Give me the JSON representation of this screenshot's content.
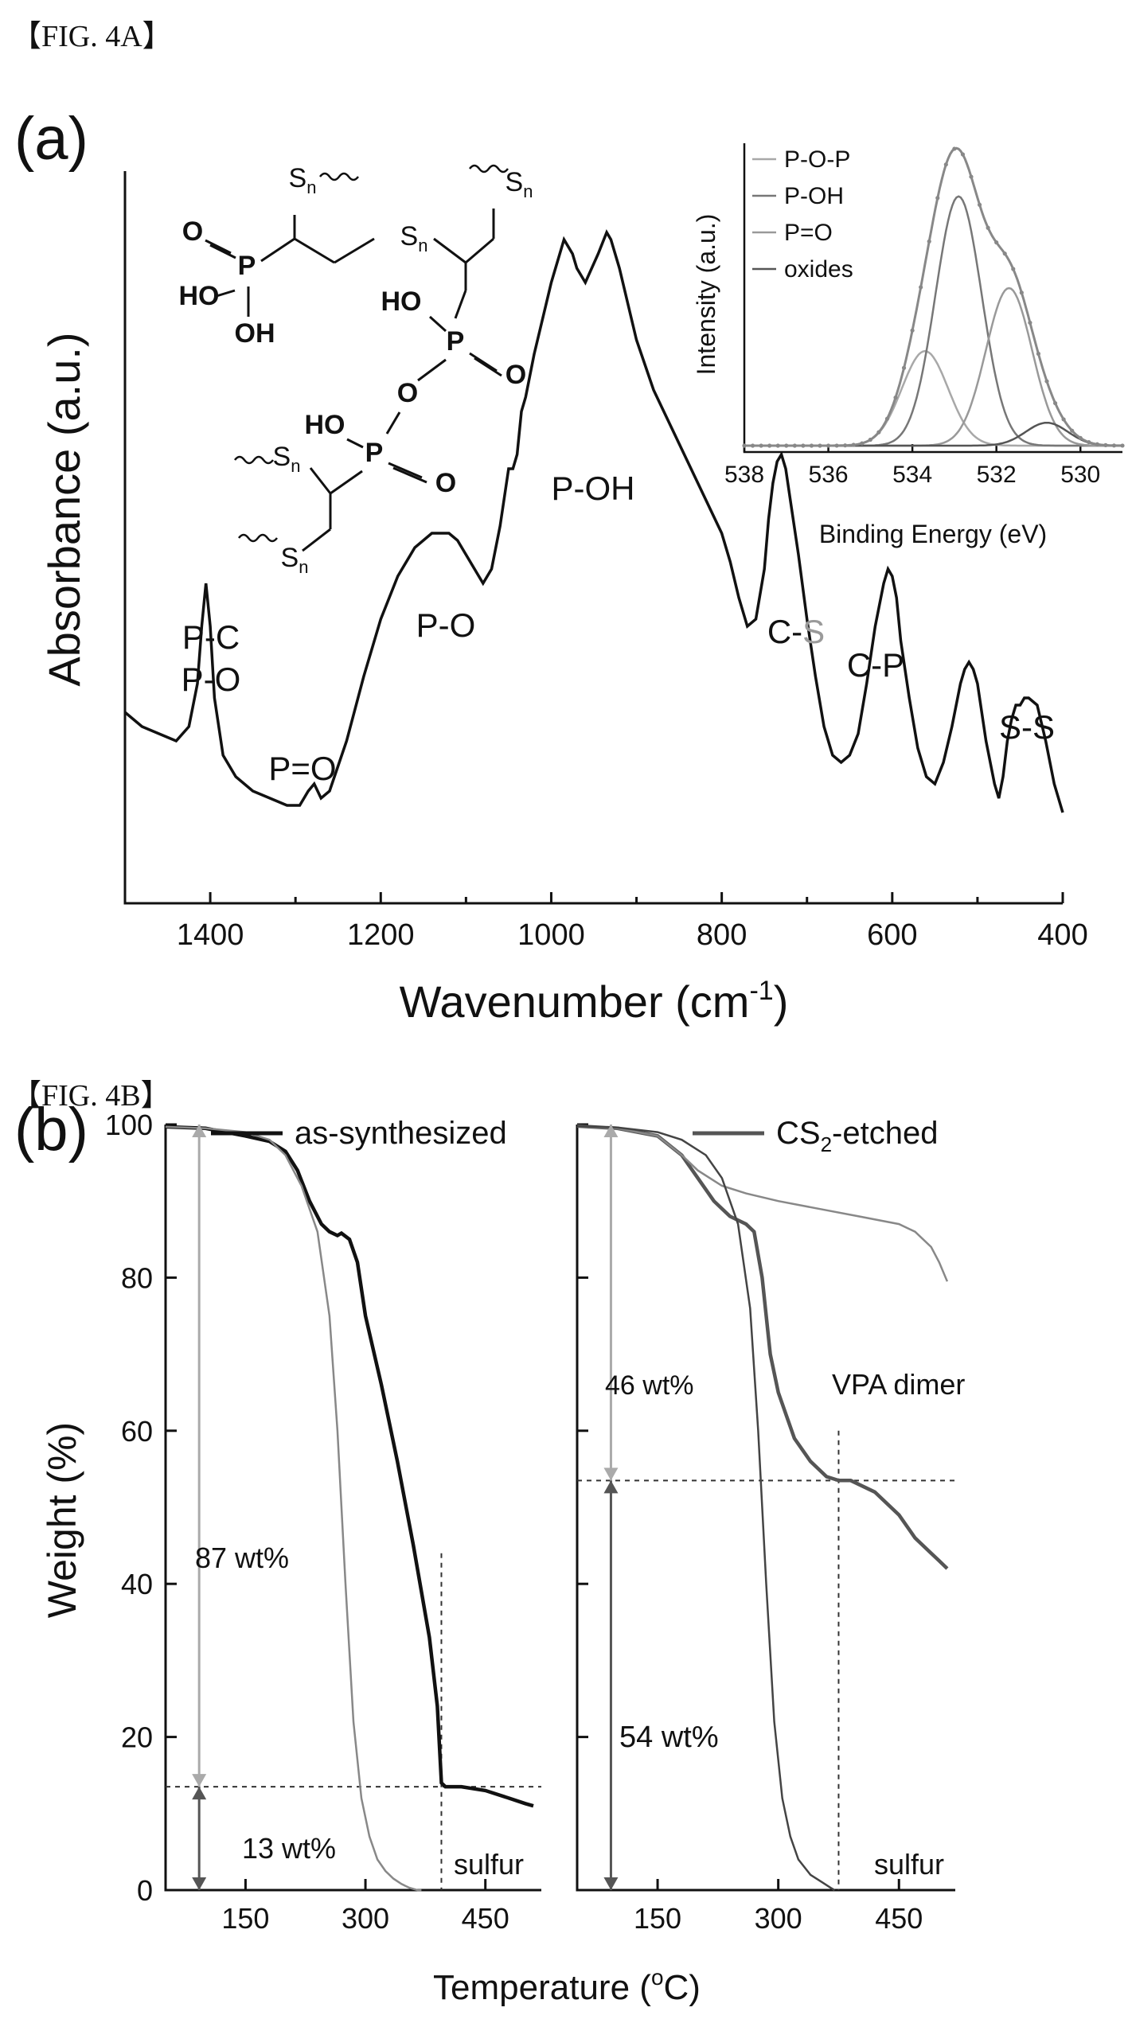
{
  "figures": {
    "a_caption": "【FIG. 4A】",
    "b_caption": "【FIG. 4B】"
  },
  "chart_data": [
    {
      "type": "line",
      "panel": "(a)",
      "xlabel": "Wavenumber (cm",
      "xlabel_sup": "-1",
      "xlabel_end": ")",
      "ylabel": "Absorbance (a.u.)",
      "xlim": [
        1500,
        400
      ],
      "x_reversed": true,
      "xticks": [
        1400,
        1200,
        1000,
        800,
        600,
        400
      ],
      "yticks": [],
      "grid": false,
      "annotations": [
        {
          "text": "P-C",
          "x": 1405
        },
        {
          "text": "P-O",
          "x": 1405
        },
        {
          "text": "P=O",
          "x": 1290
        },
        {
          "text": "P-O",
          "x": 1120
        },
        {
          "text": "P-OH",
          "x": 955
        },
        {
          "text": "C-",
          "text2": "S",
          "x": 740
        },
        {
          "text": "C-P",
          "x": 600
        },
        {
          "text": "S-S",
          "x": 465
        }
      ],
      "series": [
        {
          "x": [
            1500,
            1480,
            1460,
            1440,
            1425,
            1415,
            1410,
            1405,
            1400,
            1395,
            1385,
            1370,
            1350,
            1330,
            1310,
            1295,
            1285,
            1278,
            1270,
            1260,
            1240,
            1220,
            1200,
            1180,
            1160,
            1140,
            1120,
            1110,
            1100,
            1090,
            1080,
            1070,
            1060,
            1050,
            1045,
            1040,
            1035,
            1030,
            1020,
            1000,
            985,
            975,
            970,
            960,
            945,
            935,
            930,
            920,
            900,
            880,
            860,
            840,
            820,
            800,
            790,
            780,
            770,
            760,
            750,
            745,
            740,
            735,
            730,
            725,
            720,
            710,
            700,
            690,
            680,
            670,
            660,
            650,
            640,
            630,
            620,
            610,
            605,
            600,
            595,
            590,
            580,
            570,
            560,
            550,
            540,
            530,
            520,
            515,
            510,
            505,
            500,
            490,
            480,
            475,
            470,
            465,
            460,
            455,
            450,
            445,
            440,
            430,
            420,
            410,
            400
          ],
          "y": [
            0.2,
            0.18,
            0.17,
            0.16,
            0.18,
            0.24,
            0.32,
            0.38,
            0.32,
            0.22,
            0.14,
            0.11,
            0.09,
            0.08,
            0.07,
            0.07,
            0.09,
            0.1,
            0.08,
            0.09,
            0.16,
            0.25,
            0.33,
            0.39,
            0.43,
            0.45,
            0.45,
            0.44,
            0.42,
            0.4,
            0.38,
            0.4,
            0.46,
            0.54,
            0.54,
            0.56,
            0.62,
            0.64,
            0.7,
            0.8,
            0.86,
            0.84,
            0.82,
            0.8,
            0.84,
            0.87,
            0.86,
            0.82,
            0.72,
            0.65,
            0.6,
            0.55,
            0.5,
            0.45,
            0.41,
            0.36,
            0.32,
            0.33,
            0.4,
            0.47,
            0.52,
            0.55,
            0.56,
            0.54,
            0.5,
            0.42,
            0.33,
            0.25,
            0.18,
            0.14,
            0.13,
            0.14,
            0.17,
            0.24,
            0.32,
            0.38,
            0.4,
            0.39,
            0.36,
            0.3,
            0.22,
            0.15,
            0.11,
            0.1,
            0.13,
            0.18,
            0.24,
            0.26,
            0.27,
            0.26,
            0.24,
            0.16,
            0.1,
            0.08,
            0.11,
            0.16,
            0.19,
            0.21,
            0.21,
            0.22,
            0.22,
            0.21,
            0.16,
            0.1,
            0.06
          ]
        }
      ],
      "inset": {
        "type": "line",
        "xlabel": "Binding Energy (eV)",
        "ylabel": "Intensity (a.u.)",
        "xlim": [
          538,
          529
        ],
        "xticks": [
          538,
          536,
          534,
          532,
          530
        ],
        "legend": [
          "P-O-P",
          "P-OH",
          "P=O",
          "oxides"
        ],
        "components": [
          {
            "name": "P-O-P",
            "center": 533.7,
            "height": 0.33,
            "width": 0.55
          },
          {
            "name": "P-OH",
            "center": 532.9,
            "height": 0.87,
            "width": 0.55
          },
          {
            "name": "P=O",
            "center": 531.7,
            "height": 0.55,
            "width": 0.55
          },
          {
            "name": "oxides",
            "center": 530.8,
            "height": 0.08,
            "width": 0.5
          }
        ]
      },
      "structure_labels": {
        "s": "S",
        "n": "n",
        "o": "O",
        "p": "P",
        "ho": "HO",
        "oh": "OH"
      }
    },
    {
      "type": "line",
      "panel": "(b)",
      "xlabel": "Temperature (",
      "xlabel_sup": "o",
      "xlabel_end": "C)",
      "ylabel": "Weight (%)",
      "ylim": [
        0,
        100
      ],
      "yticks": [
        0,
        20,
        40,
        60,
        80,
        100
      ],
      "subplots": [
        {
          "legend": "as-synthesized",
          "xlim": [
            50,
            520
          ],
          "xticks": [
            150,
            300,
            450
          ],
          "annotations": [
            {
              "text": "87 wt%",
              "color": "#aaaaaa"
            },
            {
              "text": "13 wt%",
              "color": "#555555"
            },
            {
              "text": "sulfur"
            }
          ],
          "hline": 13.5,
          "vline": 395,
          "series": [
            {
              "name": "as-synthesized",
              "x": [
                50,
                100,
                150,
                180,
                200,
                215,
                230,
                245,
                255,
                265,
                270,
                280,
                290,
                300,
                320,
                340,
                360,
                380,
                390,
                395,
                400,
                420,
                450,
                480,
                500,
                510
              ],
              "y": [
                99.7,
                99.5,
                98.5,
                97.8,
                96.5,
                94,
                90,
                87,
                86,
                85.5,
                85.8,
                85,
                82,
                75,
                66,
                56,
                45,
                33,
                24,
                14,
                13.5,
                13.5,
                13,
                12,
                11.3,
                11
              ]
            },
            {
              "name": "sulfur",
              "x": [
                50,
                100,
                150,
                180,
                200,
                220,
                240,
                255,
                265,
                275,
                285,
                295,
                305,
                315,
                325,
                335,
                345,
                355,
                365,
                370
              ],
              "y": [
                99.7,
                99.5,
                99,
                98,
                96,
                92,
                86,
                75,
                60,
                40,
                22,
                12,
                7,
                4,
                2.5,
                1.5,
                0.8,
                0.3,
                0,
                0
              ]
            }
          ]
        },
        {
          "legend": "CS",
          "legend_sub": "2",
          "legend_end": "-etched",
          "xlim": [
            50,
            520
          ],
          "xticks": [
            150,
            300,
            450
          ],
          "annotations": [
            {
              "text": "46 wt%",
              "color": "#aaaaaa"
            },
            {
              "text": "VPA dimer",
              "color": "#555555"
            },
            {
              "text": "54 wt%",
              "color": "#555555"
            },
            {
              "text": "sulfur"
            }
          ],
          "hline": 53.5,
          "vline": 375,
          "series": [
            {
              "name": "CS2-etched",
              "x": [
                50,
                100,
                150,
                180,
                200,
                220,
                240,
                260,
                270,
                280,
                290,
                300,
                310,
                320,
                340,
                360,
                375,
                390,
                420,
                450,
                470,
                490,
                500,
                510
              ],
              "y": [
                99.8,
                99.5,
                98.5,
                96,
                93,
                90,
                88,
                87,
                86,
                80,
                70,
                65,
                62,
                59,
                56,
                54,
                53.5,
                53.5,
                52,
                49,
                46,
                44,
                43,
                42
              ]
            },
            {
              "name": "VPA dimer",
              "x": [
                50,
                100,
                150,
                180,
                200,
                230,
                260,
                300,
                350,
                400,
                450,
                470,
                490,
                500,
                510
              ],
              "y": [
                99.8,
                99.5,
                98.5,
                96,
                94,
                92,
                91,
                90,
                89,
                88,
                87,
                86,
                84,
                82,
                79.5
              ]
            },
            {
              "name": "sulfur",
              "x": [
                50,
                100,
                150,
                180,
                210,
                230,
                250,
                265,
                275,
                285,
                295,
                305,
                315,
                325,
                340,
                355,
                365,
                370
              ],
              "y": [
                99.8,
                99.6,
                99,
                98,
                96,
                93,
                87,
                76,
                60,
                40,
                22,
                12,
                7,
                4,
                2,
                1,
                0.3,
                0
              ]
            }
          ]
        }
      ]
    }
  ]
}
